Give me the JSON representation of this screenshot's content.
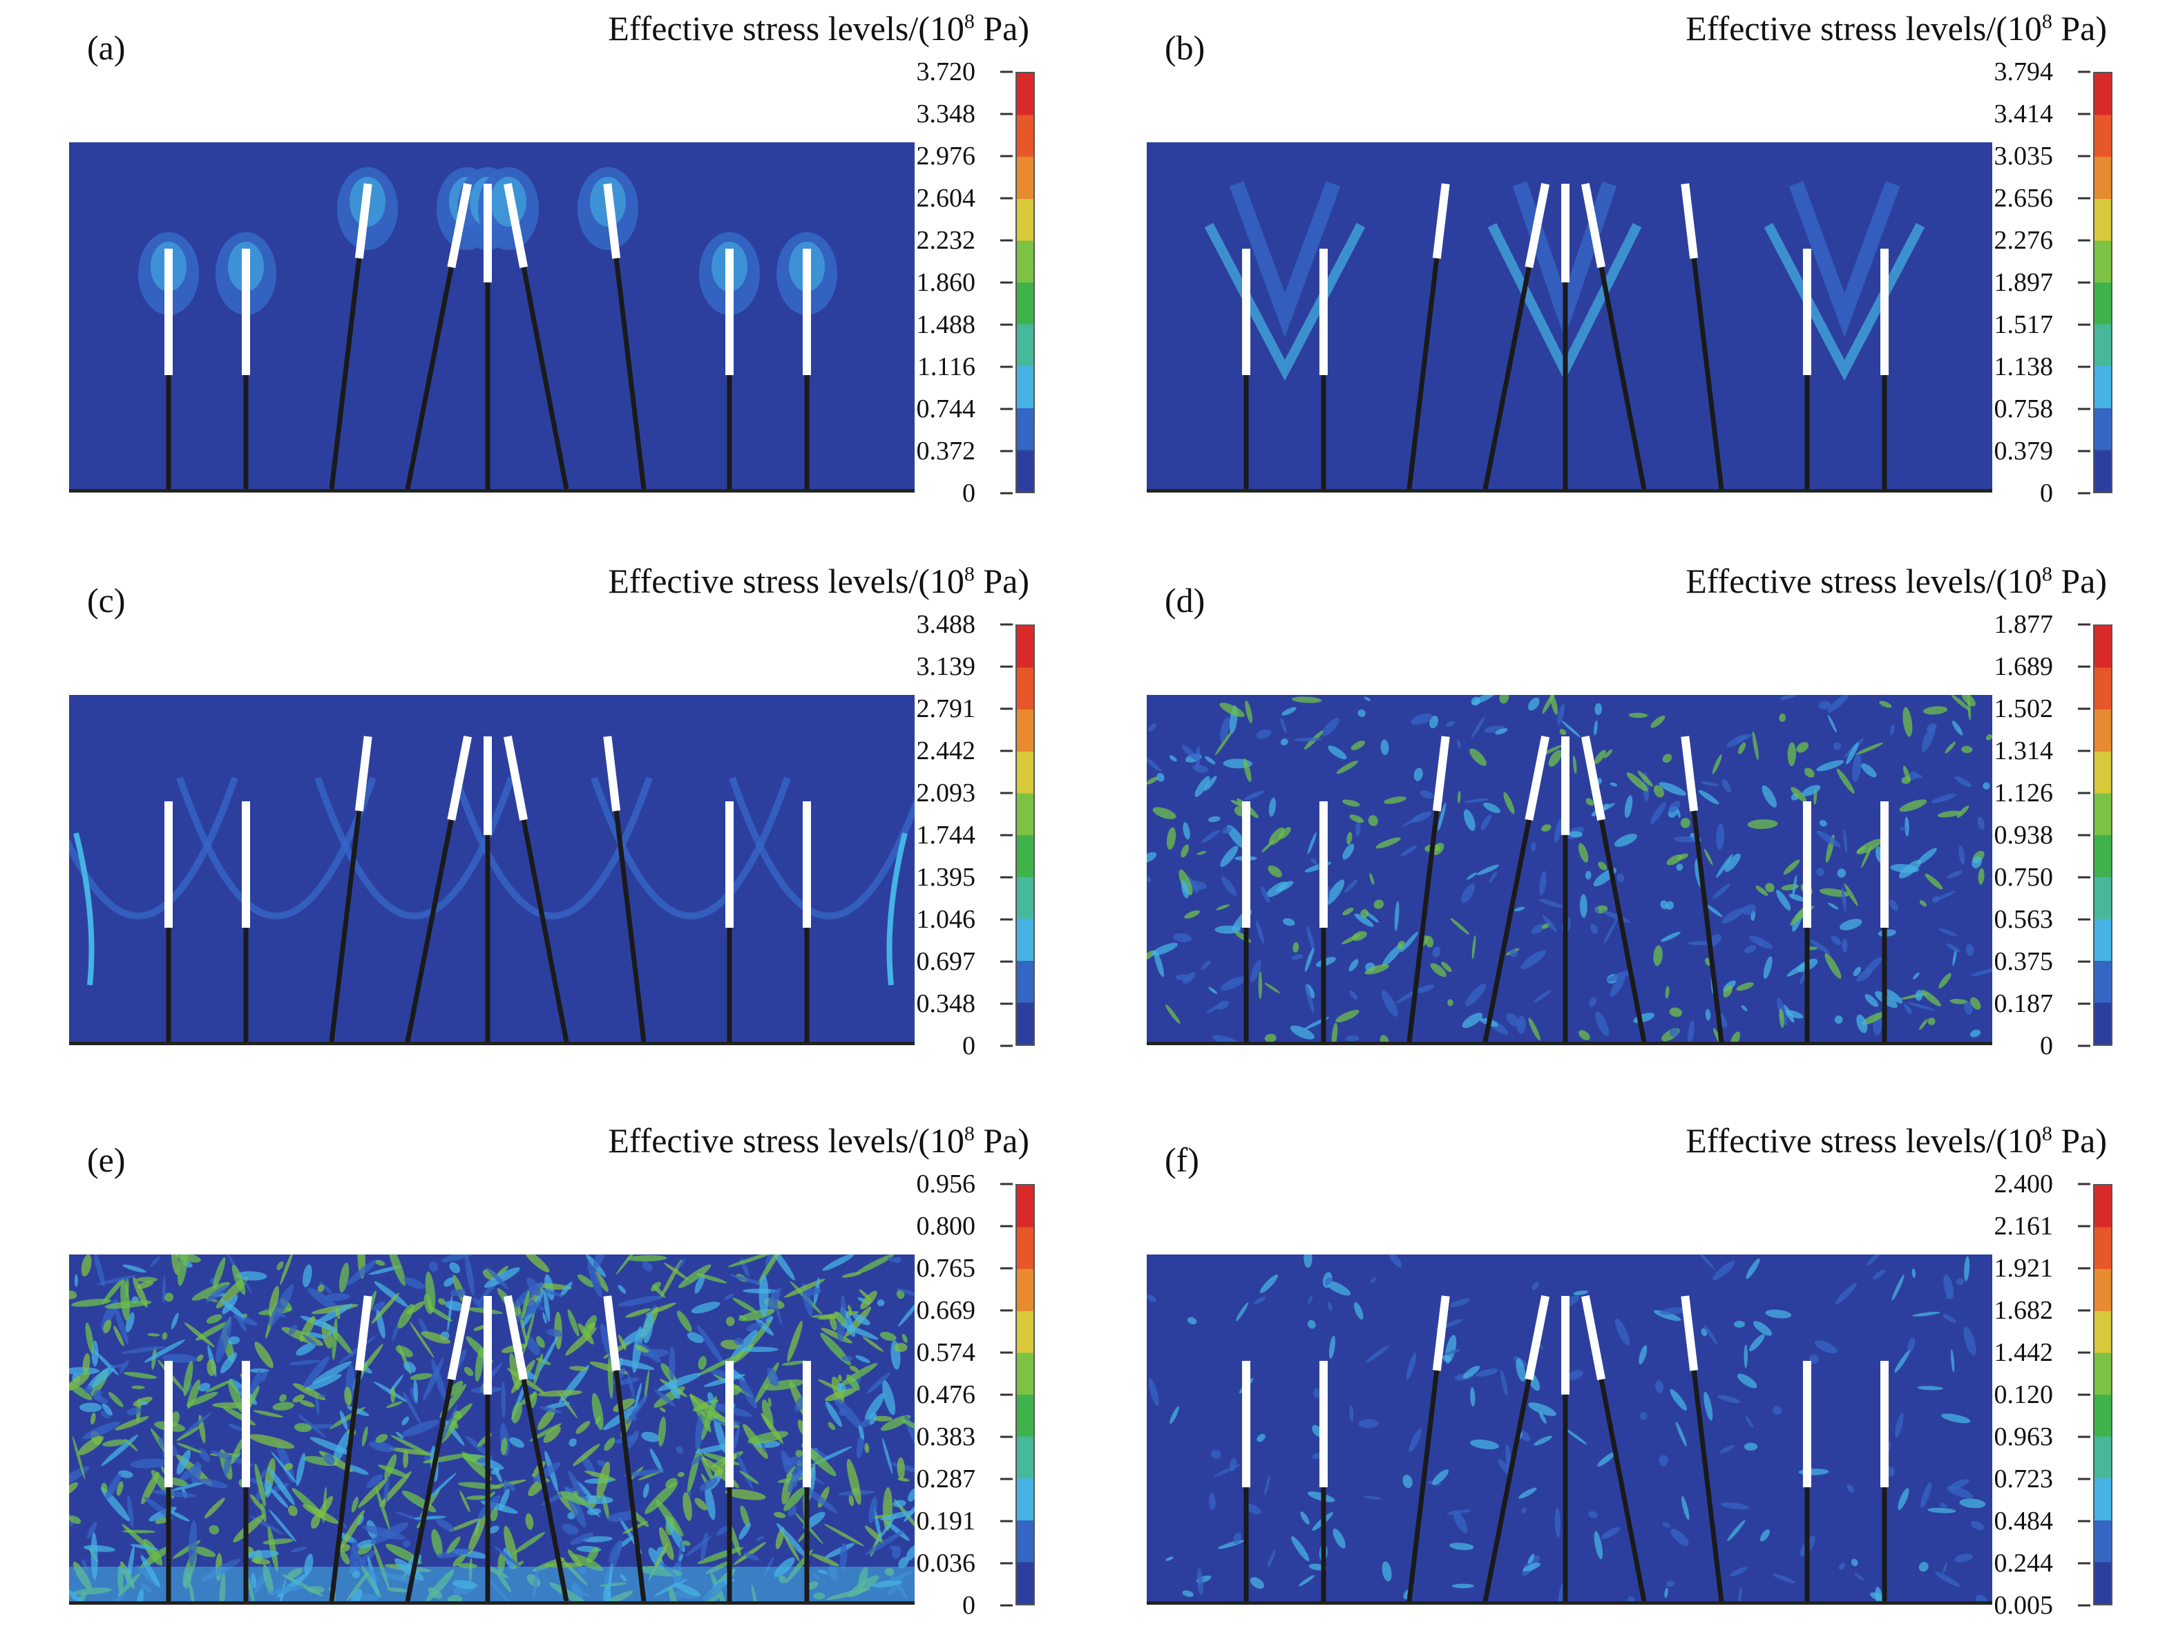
{
  "figure": {
    "colorbar_colors": [
      "#2d3f9e",
      "#3566c4",
      "#45b3e3",
      "#47b89a",
      "#3fb24c",
      "#7cc243",
      "#d8c93a",
      "#e88a2f",
      "#e8572a",
      "#d92a2a"
    ],
    "field_color": "#2d3f9e",
    "implant_color": "#ffffff",
    "rod_color": "#1a1a1a"
  },
  "panels": [
    {
      "label": "(a)",
      "title_pre": "Effective stress levels/(10",
      "title_sup": "8",
      "title_post": " Pa)",
      "ticks": [
        "3.720",
        "3.348",
        "2.976",
        "2.604",
        "2.232",
        "1.860",
        "1.488",
        "1.116",
        "0.744",
        "0.372",
        "0"
      ],
      "pattern": "halo"
    },
    {
      "label": "(b)",
      "title_pre": "Effective stress levels/(10",
      "title_sup": "8",
      "title_post": " Pa)",
      "ticks": [
        "3.794",
        "3.414",
        "3.035",
        "2.656",
        "2.276",
        "1.897",
        "1.517",
        "1.138",
        "0.758",
        "0.379",
        "0"
      ],
      "pattern": "v-bands"
    },
    {
      "label": "(c)",
      "title_pre": "Effective stress levels/(10",
      "title_sup": "8",
      "title_post": " Pa)",
      "ticks": [
        "3.488",
        "3.139",
        "2.791",
        "2.442",
        "2.093",
        "1.744",
        "1.395",
        "1.046",
        "0.697",
        "0.348",
        "0"
      ],
      "pattern": "arcs"
    },
    {
      "label": "(d)",
      "title_pre": "Effective stress levels/(10",
      "title_sup": "8",
      "title_post": " Pa)",
      "ticks": [
        "1.877",
        "1.689",
        "1.502",
        "1.314",
        "1.126",
        "0.938",
        "0.750",
        "0.563",
        "0.375",
        "0.187",
        "0"
      ],
      "pattern": "speckle"
    },
    {
      "label": "(e)",
      "title_pre": "Effective stress levels/(10",
      "title_sup": "8",
      "title_post": " Pa)",
      "ticks": [
        "0.956",
        "0.800",
        "0.765",
        "0.669",
        "0.574",
        "0.476",
        "0.383",
        "0.287",
        "0.191",
        "0.036",
        "0"
      ],
      "pattern": "dense"
    },
    {
      "label": "(f)",
      "title_pre": "Effective stress levels/(10",
      "title_sup": "8",
      "title_post": " Pa)",
      "ticks": [
        "2.400",
        "2.161",
        "1.921",
        "1.682",
        "1.442",
        "0.120",
        "0.963",
        "0.723",
        "0.484",
        "0.244",
        "0.005"
      ],
      "pattern": "sparse"
    }
  ]
}
